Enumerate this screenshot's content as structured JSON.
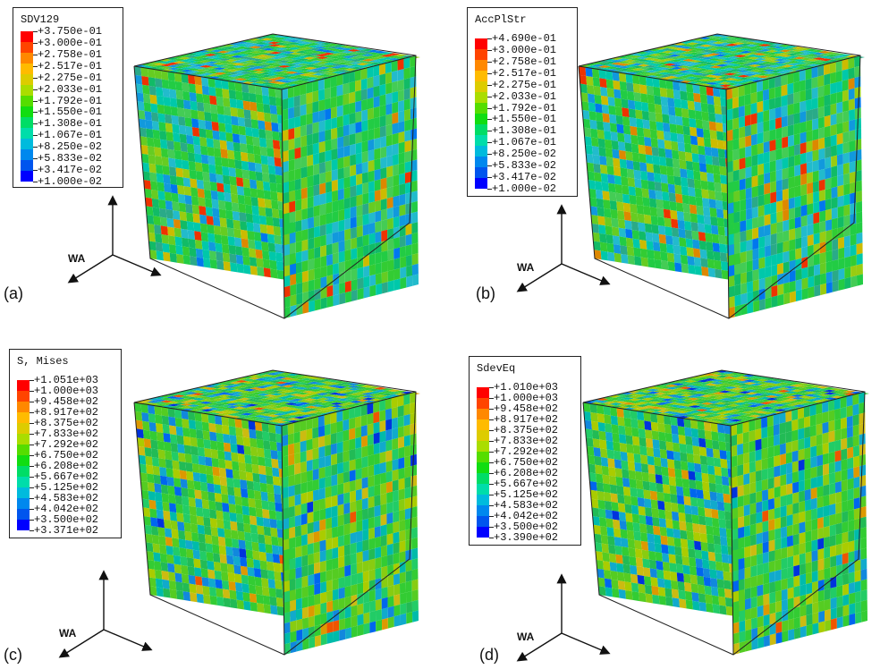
{
  "legend_colors": [
    "#ff0000",
    "#ff4400",
    "#ff8800",
    "#ffbb00",
    "#ddcc00",
    "#aadd00",
    "#55dd00",
    "#11dd11",
    "#00dd66",
    "#00ddaa",
    "#00bbdd",
    "#0088ee",
    "#0055ee",
    "#0000ff"
  ],
  "panels": [
    {
      "label": "(a)",
      "legend_title": "SDV129",
      "legend_values": [
        "+3.750e-01",
        "+3.000e-01",
        "+2.758e-01",
        "+2.517e-01",
        "+2.275e-01",
        "+2.033e-01",
        "+1.792e-01",
        "+1.550e-01",
        "+1.308e-01",
        "+1.067e-01",
        "+8.250e-02",
        "+5.833e-02",
        "+3.417e-02",
        "+1.000e-02"
      ],
      "axis_label": "WA",
      "palette": "strain"
    },
    {
      "label": "(b)",
      "legend_title": "AccPlStr",
      "legend_values": [
        "+4.690e-01",
        "+3.000e-01",
        "+2.758e-01",
        "+2.517e-01",
        "+2.275e-01",
        "+2.033e-01",
        "+1.792e-01",
        "+1.550e-01",
        "+1.308e-01",
        "+1.067e-01",
        "+8.250e-02",
        "+5.833e-02",
        "+3.417e-02",
        "+1.000e-02"
      ],
      "axis_label": "WA",
      "palette": "strain"
    },
    {
      "label": "(c)",
      "legend_title": "S, Mises",
      "legend_values": [
        "+1.051e+03",
        "+1.000e+03",
        "+9.458e+02",
        "+8.917e+02",
        "+8.375e+02",
        "+7.833e+02",
        "+7.292e+02",
        "+6.750e+02",
        "+6.208e+02",
        "+5.667e+02",
        "+5.125e+02",
        "+4.583e+02",
        "+4.042e+02",
        "+3.500e+02",
        "+3.371e+02"
      ],
      "axis_label": "WA",
      "palette": "stress"
    },
    {
      "label": "(d)",
      "legend_title": "SdevEq",
      "legend_values": [
        "+1.010e+03",
        "+1.000e+03",
        "+9.458e+02",
        "+8.917e+02",
        "+8.375e+02",
        "+7.833e+02",
        "+7.292e+02",
        "+6.750e+02",
        "+6.208e+02",
        "+5.667e+02",
        "+5.125e+02",
        "+4.583e+02",
        "+4.042e+02",
        "+3.500e+02",
        "+3.390e+02"
      ],
      "axis_label": "WA",
      "palette": "stress"
    }
  ]
}
